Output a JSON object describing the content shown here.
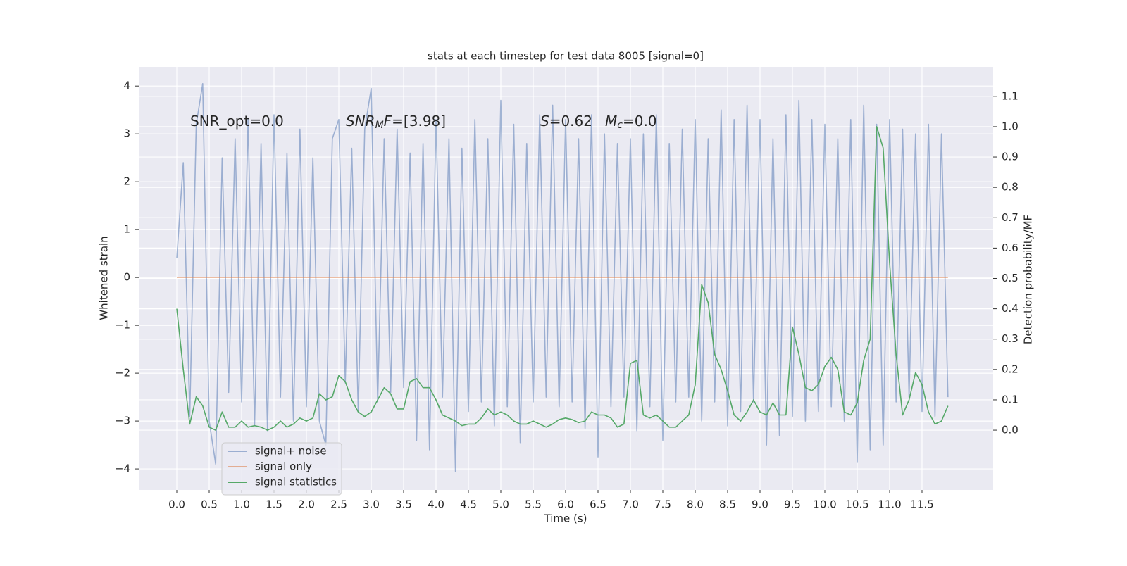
{
  "chart_data": {
    "type": "line",
    "title": "stats at each timestep for test data 8005 [signal=0]",
    "xlabel": "Time (s)",
    "ylabel": "Whitened strain",
    "y2label": "Detection probability/MF",
    "annotations": [
      [
        {
          "text": "SNR_opt=0.0"
        }
      ],
      [
        {
          "text": "SNR",
          "style": "italic"
        },
        {
          "text": "M",
          "style": "italic-sub"
        },
        {
          "text": "F",
          "style": "italic"
        },
        {
          "text": "=[3.98]"
        }
      ],
      [
        {
          "text": "S",
          "style": "italic"
        },
        {
          "text": "=0.62"
        }
      ],
      [
        {
          "text": "M",
          "style": "italic"
        },
        {
          "text": "c",
          "style": "italic-sub"
        },
        {
          "text": "=0.0"
        }
      ]
    ],
    "grid": true,
    "background": "#eaeaf2",
    "legend": "lower left",
    "xlim": [
      -0.587,
      12.598
    ],
    "ylim": [
      -4.44,
      4.4
    ],
    "y2lim": [
      -0.197,
      1.197
    ],
    "xticks": [
      {
        "value": 0,
        "label": "0.0"
      },
      0.5,
      {
        "value": 1,
        "label": "1.0"
      },
      1.5,
      {
        "value": 2,
        "label": "2.0"
      },
      2.5,
      {
        "value": 3,
        "label": "3.0"
      },
      3.5,
      {
        "value": 4,
        "label": "4.0"
      },
      4.5,
      {
        "value": 5,
        "label": "5.0"
      },
      5.5,
      {
        "value": 6,
        "label": "6.0"
      },
      6.5,
      {
        "value": 7,
        "label": "7.0"
      },
      7.5,
      {
        "value": 8,
        "label": "8.0"
      },
      8.5,
      {
        "value": 9,
        "label": "9.0"
      },
      9.5,
      {
        "value": 10,
        "label": "10.0"
      },
      10.5,
      {
        "value": 11,
        "label": "11.0"
      },
      11.5
    ],
    "yticks": [
      {
        "value": -4,
        "label": "−4"
      },
      {
        "value": -3,
        "label": "−3"
      },
      {
        "value": -2,
        "label": "−2"
      },
      {
        "value": -1,
        "label": "−1"
      },
      0,
      1,
      2,
      3,
      4
    ],
    "y2ticks": [
      {
        "value": 0,
        "label": "0.0"
      },
      0.1,
      0.2,
      0.3,
      0.4,
      0.5,
      0.6,
      0.7,
      0.8,
      0.9,
      {
        "value": 1,
        "label": "1.0"
      },
      1.1
    ],
    "x": [
      0,
      0.1,
      0.2,
      0.3,
      0.4,
      0.5,
      0.6,
      0.7,
      0.8,
      0.9,
      1,
      1.1,
      1.2,
      1.3,
      1.4,
      1.5,
      1.6,
      1.7,
      1.8,
      1.9,
      2,
      2.1,
      2.2,
      2.3,
      2.4,
      2.5,
      2.6,
      2.7,
      2.8,
      2.9,
      3,
      3.1,
      3.2,
      3.3,
      3.4,
      3.5,
      3.6,
      3.7,
      3.8,
      3.9,
      4,
      4.1,
      4.2,
      4.3,
      4.4,
      4.5,
      4.6,
      4.7,
      4.8,
      4.9,
      5,
      5.1,
      5.2,
      5.3,
      5.4,
      5.5,
      5.6,
      5.7,
      5.8,
      5.9,
      6,
      6.1,
      6.2,
      6.3,
      6.4,
      6.5,
      6.6,
      6.7,
      6.8,
      6.9,
      7,
      7.1,
      7.2,
      7.3,
      7.4,
      7.5,
      7.6,
      7.7,
      7.8,
      7.9,
      8,
      8.1,
      8.2,
      8.3,
      8.4,
      8.5,
      8.6,
      8.7,
      8.8,
      8.9,
      9,
      9.1,
      9.2,
      9.3,
      9.4,
      9.5,
      9.6,
      9.7,
      9.8,
      9.9,
      10,
      10.1,
      10.2,
      10.3,
      10.4,
      10.5,
      10.6,
      10.7,
      10.8,
      10.9,
      11,
      11.1,
      11.2,
      11.3,
      11.4,
      11.5,
      11.6,
      11.7,
      11.8,
      11.9
    ],
    "series": [
      {
        "name": "signal+ noise",
        "color": "#4c72b0",
        "opacity": 0.5,
        "axis": "y",
        "values": [
          0.4,
          2.4,
          -2.9,
          3.2,
          4.05,
          -3.0,
          -3.9,
          2.5,
          -2.4,
          2.9,
          -2.6,
          3.3,
          -3.1,
          2.8,
          -3.2,
          3.4,
          -2.5,
          2.6,
          -3.0,
          3.1,
          -2.7,
          2.5,
          -3.0,
          -3.5,
          2.9,
          3.3,
          -2.2,
          2.7,
          -2.8,
          3.1,
          3.95,
          -2.6,
          2.9,
          -2.4,
          3.1,
          -2.3,
          2.6,
          -3.4,
          2.8,
          -3.6,
          3.3,
          -2.5,
          2.9,
          -4.05,
          2.7,
          -2.8,
          3.3,
          -2.6,
          2.9,
          -3.1,
          3.7,
          -2.7,
          3.2,
          -3.45,
          2.8,
          -2.6,
          3.4,
          -2.5,
          3.6,
          -2.7,
          3.3,
          -2.6,
          2.9,
          -3.15,
          3.4,
          -3.75,
          3.0,
          -2.7,
          2.8,
          -2.5,
          2.9,
          -3.2,
          3.0,
          -2.7,
          3.4,
          -3.4,
          2.8,
          -2.6,
          3.1,
          -2.5,
          3.3,
          -3.0,
          2.9,
          -2.6,
          3.5,
          -3.1,
          3.3,
          -2.8,
          3.6,
          -2.6,
          3.3,
          -3.5,
          2.9,
          -3.3,
          3.4,
          -2.9,
          3.7,
          -3.0,
          3.3,
          -2.8,
          3.2,
          -2.7,
          2.9,
          -3.0,
          3.3,
          -3.85,
          3.6,
          -3.6,
          3.2,
          -3.5,
          3.3,
          -2.6,
          3.1,
          -2.5,
          3.0,
          -2.8,
          3.2,
          -2.9,
          3.0,
          -2.5
        ]
      },
      {
        "name": "signal only",
        "color": "#dd8452",
        "opacity": 0.6,
        "axis": "y",
        "values": [
          0,
          0,
          0,
          0,
          0,
          0,
          0,
          0,
          0,
          0,
          0,
          0,
          0,
          0,
          0,
          0,
          0,
          0,
          0,
          0,
          0,
          0,
          0,
          0,
          0,
          0,
          0,
          0,
          0,
          0,
          0,
          0,
          0,
          0,
          0,
          0,
          0,
          0,
          0,
          0,
          0,
          0,
          0,
          0,
          0,
          0,
          0,
          0,
          0,
          0,
          0,
          0,
          0,
          0,
          0,
          0,
          0,
          0,
          0,
          0,
          0,
          0,
          0,
          0,
          0,
          0,
          0,
          0,
          0,
          0,
          0,
          0,
          0,
          0,
          0,
          0,
          0,
          0,
          0,
          0,
          0,
          0,
          0,
          0,
          0,
          0,
          0,
          0,
          0,
          0,
          0,
          0,
          0,
          0,
          0,
          0,
          0,
          0,
          0,
          0,
          0,
          0,
          0,
          0,
          0,
          0,
          0,
          0,
          0,
          0,
          0,
          0,
          0,
          0,
          0,
          0,
          0,
          0,
          0,
          0
        ]
      },
      {
        "name": "signal statistics",
        "color": "#55a868",
        "opacity": 1,
        "axis": "y2",
        "values": [
          0.4,
          0.2,
          0.02,
          0.11,
          0.08,
          0.01,
          0.0,
          0.06,
          0.01,
          0.01,
          0.03,
          0.01,
          0.015,
          0.01,
          0.0,
          0.01,
          0.03,
          0.01,
          0.02,
          0.04,
          0.03,
          0.04,
          0.12,
          0.1,
          0.11,
          0.18,
          0.16,
          0.1,
          0.06,
          0.045,
          0.06,
          0.1,
          0.14,
          0.12,
          0.07,
          0.07,
          0.16,
          0.17,
          0.14,
          0.14,
          0.1,
          0.05,
          0.04,
          0.03,
          0.015,
          0.02,
          0.02,
          0.04,
          0.07,
          0.05,
          0.06,
          0.05,
          0.03,
          0.02,
          0.02,
          0.03,
          0.02,
          0.01,
          0.02,
          0.035,
          0.04,
          0.035,
          0.025,
          0.03,
          0.06,
          0.05,
          0.05,
          0.04,
          0.01,
          0.02,
          0.22,
          0.23,
          0.05,
          0.04,
          0.05,
          0.03,
          0.01,
          0.01,
          0.03,
          0.05,
          0.15,
          0.48,
          0.42,
          0.25,
          0.2,
          0.13,
          0.05,
          0.03,
          0.06,
          0.1,
          0.06,
          0.05,
          0.09,
          0.05,
          0.05,
          0.34,
          0.25,
          0.14,
          0.13,
          0.15,
          0.21,
          0.24,
          0.2,
          0.06,
          0.05,
          0.09,
          0.23,
          0.3,
          1.0,
          0.93,
          0.55,
          0.25,
          0.05,
          0.1,
          0.19,
          0.15,
          0.06,
          0.02,
          0.03,
          0.08
        ]
      }
    ]
  }
}
